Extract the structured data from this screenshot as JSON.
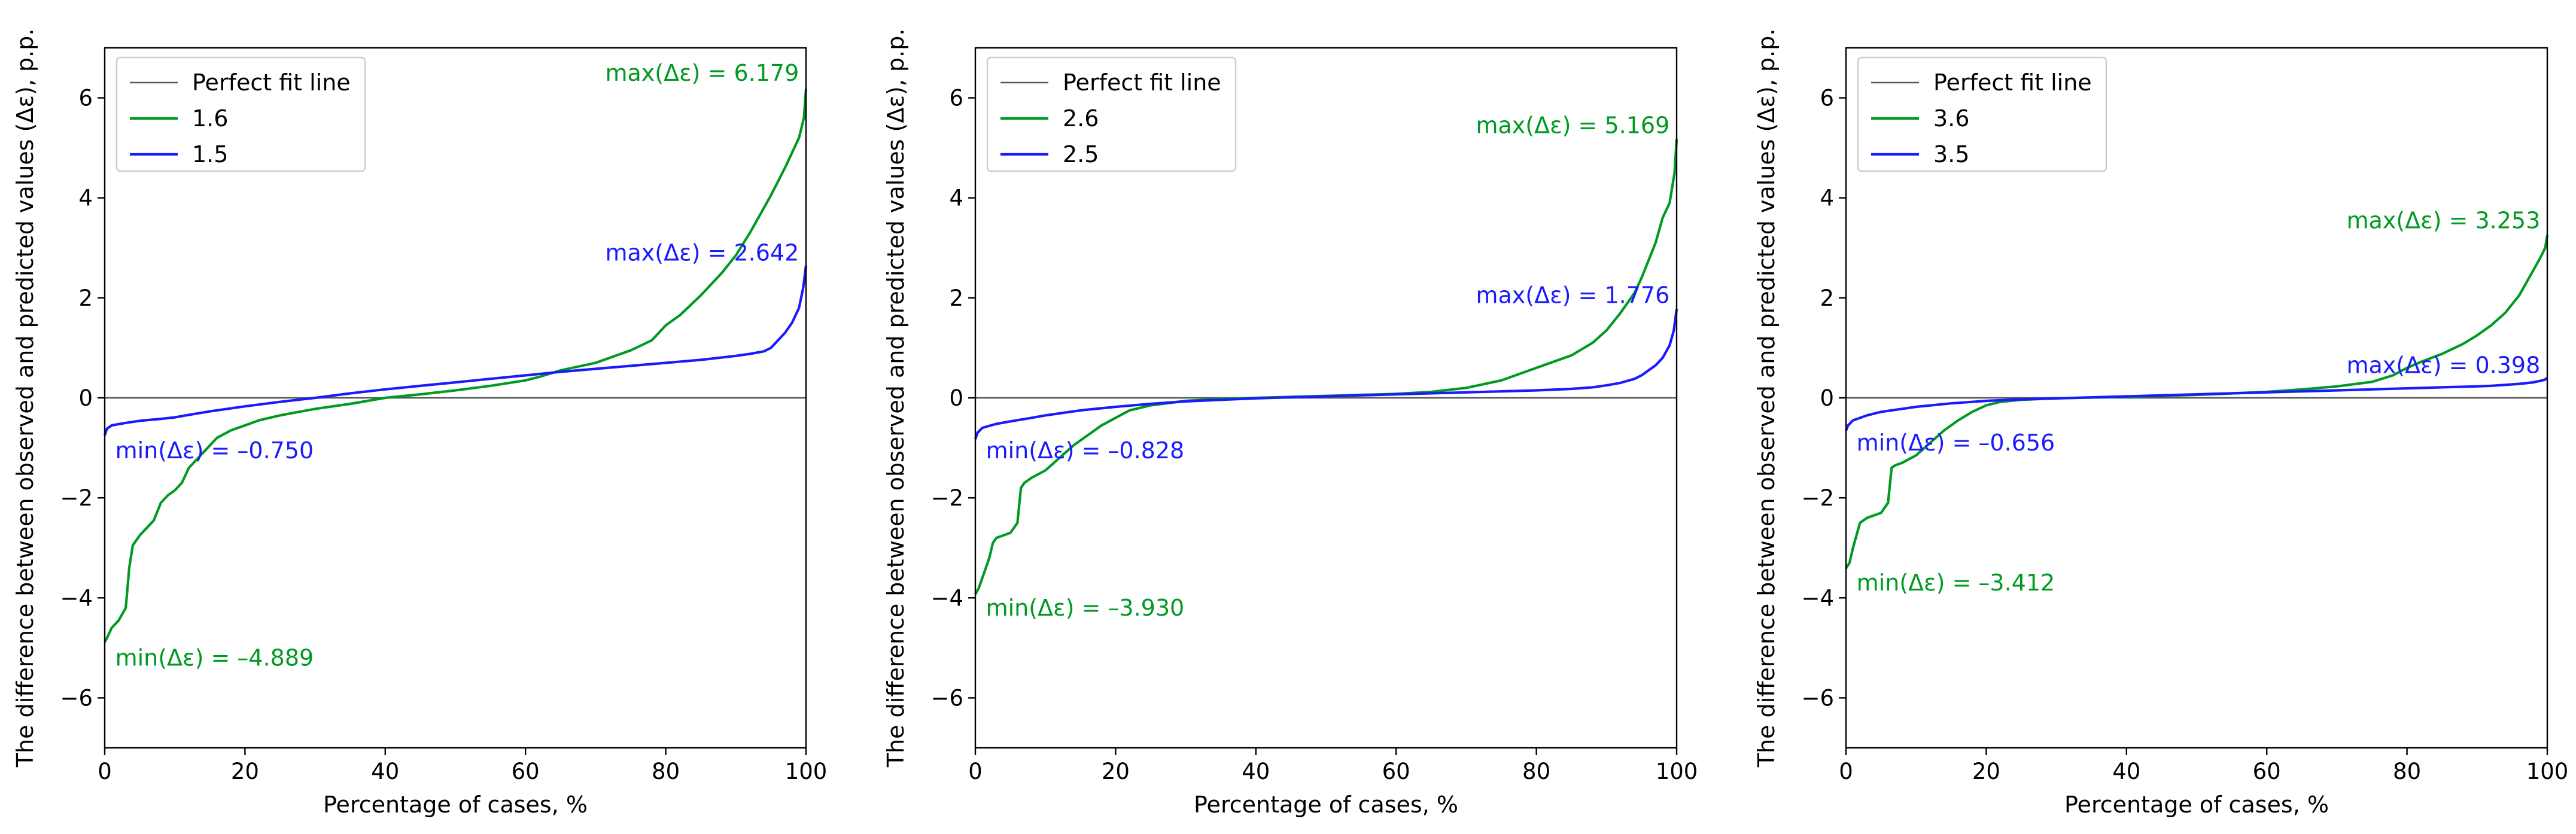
{
  "chart_data": [
    {
      "type": "line",
      "title": "",
      "xlabel": "Percentage of cases, %",
      "ylabel": "The difference between observed and predicted values (Δε), p.p.",
      "xlim": [
        0,
        100
      ],
      "ylim": [
        -7,
        7
      ],
      "xticks": [
        0,
        20,
        40,
        60,
        80,
        100
      ],
      "yticks": [
        -6,
        -4,
        -2,
        0,
        2,
        4,
        6
      ],
      "legend_position": "top-left",
      "reference_line": {
        "name": "Perfect fit line",
        "y": 0,
        "color": "#555555"
      },
      "series": [
        {
          "name": "1.6",
          "color": "#009922",
          "x": [
            0,
            0.5,
            1,
            2,
            3,
            3.5,
            4,
            5,
            6,
            7,
            8,
            9,
            10,
            11,
            12,
            14,
            16,
            18,
            20,
            22,
            25,
            30,
            35,
            40,
            45,
            50,
            55,
            60,
            62,
            65,
            70,
            72,
            75,
            78,
            79,
            80,
            82,
            85,
            88,
            90,
            92,
            95,
            97,
            99,
            99.7,
            100
          ],
          "y": [
            -4.889,
            -4.75,
            -4.6,
            -4.45,
            -4.2,
            -3.4,
            -2.95,
            -2.75,
            -2.6,
            -2.45,
            -2.1,
            -1.95,
            -1.85,
            -1.7,
            -1.4,
            -1.1,
            -0.8,
            -0.65,
            -0.55,
            -0.45,
            -0.35,
            -0.22,
            -0.12,
            0.0,
            0.07,
            0.15,
            0.24,
            0.35,
            0.42,
            0.55,
            0.7,
            0.8,
            0.95,
            1.15,
            1.3,
            1.45,
            1.65,
            2.05,
            2.5,
            2.85,
            3.3,
            4.05,
            4.6,
            5.2,
            5.6,
            6.179
          ]
        },
        {
          "name": "1.5",
          "color": "#1a1aff",
          "x": [
            0,
            0.3,
            1,
            3,
            5,
            8,
            10,
            12,
            15,
            20,
            25,
            30,
            35,
            40,
            45,
            50,
            55,
            60,
            65,
            70,
            75,
            80,
            85,
            90,
            92,
            94,
            95,
            96,
            97,
            98,
            99,
            99.6,
            100
          ],
          "y": [
            -0.75,
            -0.62,
            -0.55,
            -0.5,
            -0.46,
            -0.42,
            -0.39,
            -0.34,
            -0.27,
            -0.17,
            -0.08,
            0.0,
            0.09,
            0.17,
            0.24,
            0.31,
            0.38,
            0.45,
            0.52,
            0.58,
            0.64,
            0.7,
            0.76,
            0.84,
            0.88,
            0.93,
            1.0,
            1.15,
            1.3,
            1.5,
            1.8,
            2.2,
            2.642
          ]
        }
      ],
      "annotations": [
        {
          "text": "max(Δε) = 6.179",
          "color": "#009922"
        },
        {
          "text": "max(Δε) = 2.642",
          "color": "#1a1aff"
        },
        {
          "text": "min(Δε) = –0.750",
          "color": "#1a1aff"
        },
        {
          "text": "min(Δε) = –4.889",
          "color": "#009922"
        }
      ]
    },
    {
      "type": "line",
      "title": "",
      "xlabel": "Percentage of cases, %",
      "ylabel": "The difference between observed and predicted values (Δε), p.p.",
      "xlim": [
        0,
        100
      ],
      "ylim": [
        -7,
        7
      ],
      "xticks": [
        0,
        20,
        40,
        60,
        80,
        100
      ],
      "yticks": [
        -6,
        -4,
        -2,
        0,
        2,
        4,
        6
      ],
      "legend_position": "top-left",
      "reference_line": {
        "name": "Perfect fit line",
        "y": 0,
        "color": "#555555"
      },
      "series": [
        {
          "name": "2.6",
          "color": "#009922",
          "x": [
            0,
            0.5,
            1,
            2,
            2.5,
            3,
            4,
            5,
            6,
            6.5,
            7,
            8,
            10,
            12,
            14,
            16,
            18,
            20,
            22,
            25,
            30,
            35,
            40,
            45,
            50,
            55,
            60,
            65,
            70,
            75,
            78,
            80,
            82,
            85,
            88,
            90,
            92,
            94,
            95,
            97,
            98,
            99,
            99.7,
            100
          ],
          "y": [
            -3.93,
            -3.8,
            -3.6,
            -3.2,
            -2.9,
            -2.8,
            -2.75,
            -2.7,
            -2.5,
            -1.8,
            -1.7,
            -1.6,
            -1.45,
            -1.2,
            -0.95,
            -0.75,
            -0.55,
            -0.4,
            -0.25,
            -0.15,
            -0.06,
            -0.02,
            0.0,
            0.02,
            0.04,
            0.06,
            0.08,
            0.12,
            0.2,
            0.35,
            0.5,
            0.6,
            0.7,
            0.85,
            1.1,
            1.35,
            1.7,
            2.1,
            2.4,
            3.1,
            3.6,
            3.9,
            4.5,
            5.169
          ]
        },
        {
          "name": "2.5",
          "color": "#1a1aff",
          "x": [
            0,
            0.3,
            1,
            3,
            5,
            8,
            10,
            15,
            20,
            25,
            30,
            40,
            50,
            60,
            70,
            80,
            85,
            88,
            90,
            92,
            94,
            95,
            96,
            97,
            98,
            99,
            99.6,
            100
          ],
          "y": [
            -0.828,
            -0.7,
            -0.6,
            -0.52,
            -0.47,
            -0.4,
            -0.35,
            -0.25,
            -0.18,
            -0.12,
            -0.07,
            -0.01,
            0.03,
            0.07,
            0.11,
            0.15,
            0.18,
            0.21,
            0.25,
            0.3,
            0.38,
            0.45,
            0.55,
            0.65,
            0.8,
            1.05,
            1.35,
            1.776
          ]
        }
      ],
      "annotations": [
        {
          "text": "max(Δε) = 5.169",
          "color": "#009922"
        },
        {
          "text": "max(Δε) = 1.776",
          "color": "#1a1aff"
        },
        {
          "text": "min(Δε) = –0.828",
          "color": "#1a1aff"
        },
        {
          "text": "min(Δε) = –3.930",
          "color": "#009922"
        }
      ]
    },
    {
      "type": "line",
      "title": "",
      "xlabel": "Percentage of cases, %",
      "ylabel": "The difference between observed and predicted values (Δε), p.p.",
      "xlim": [
        0,
        100
      ],
      "ylim": [
        -7,
        7
      ],
      "xticks": [
        0,
        20,
        40,
        60,
        80,
        100
      ],
      "yticks": [
        -6,
        -4,
        -2,
        0,
        2,
        4,
        6
      ],
      "legend_position": "top-left",
      "reference_line": {
        "name": "Perfect fit line",
        "y": 0,
        "color": "#555555"
      },
      "series": [
        {
          "name": "3.6",
          "color": "#009922",
          "x": [
            0,
            0.5,
            1,
            2,
            3,
            4,
            5,
            6,
            6.5,
            7,
            8,
            10,
            12,
            14,
            16,
            18,
            20,
            22,
            25,
            30,
            40,
            50,
            60,
            65,
            70,
            75,
            78,
            80,
            82,
            85,
            88,
            90,
            92,
            94,
            96,
            98,
            99,
            99.7,
            100
          ],
          "y": [
            -3.412,
            -3.3,
            -3.0,
            -2.5,
            -2.4,
            -2.35,
            -2.3,
            -2.1,
            -1.4,
            -1.35,
            -1.3,
            -1.15,
            -0.9,
            -0.65,
            -0.45,
            -0.28,
            -0.15,
            -0.08,
            -0.04,
            -0.01,
            0.02,
            0.06,
            0.12,
            0.17,
            0.23,
            0.32,
            0.45,
            0.6,
            0.72,
            0.88,
            1.08,
            1.25,
            1.45,
            1.7,
            2.05,
            2.55,
            2.8,
            3.0,
            3.253
          ]
        },
        {
          "name": "3.5",
          "color": "#1a1aff",
          "x": [
            0,
            0.3,
            1,
            3,
            5,
            8,
            10,
            15,
            20,
            25,
            30,
            40,
            50,
            60,
            70,
            80,
            85,
            90,
            92,
            94,
            96,
            98,
            99,
            99.6,
            100
          ],
          "y": [
            -0.656,
            -0.55,
            -0.45,
            -0.35,
            -0.28,
            -0.22,
            -0.18,
            -0.11,
            -0.06,
            -0.03,
            -0.01,
            0.03,
            0.07,
            0.11,
            0.15,
            0.19,
            0.21,
            0.23,
            0.24,
            0.26,
            0.28,
            0.31,
            0.34,
            0.36,
            0.398
          ]
        }
      ],
      "annotations": [
        {
          "text": "max(Δε) = 3.253",
          "color": "#009922"
        },
        {
          "text": "max(Δε) = 0.398",
          "color": "#1a1aff"
        },
        {
          "text": "min(Δε) = –0.656",
          "color": "#1a1aff"
        },
        {
          "text": "min(Δε) = –3.412",
          "color": "#009922"
        }
      ]
    }
  ]
}
